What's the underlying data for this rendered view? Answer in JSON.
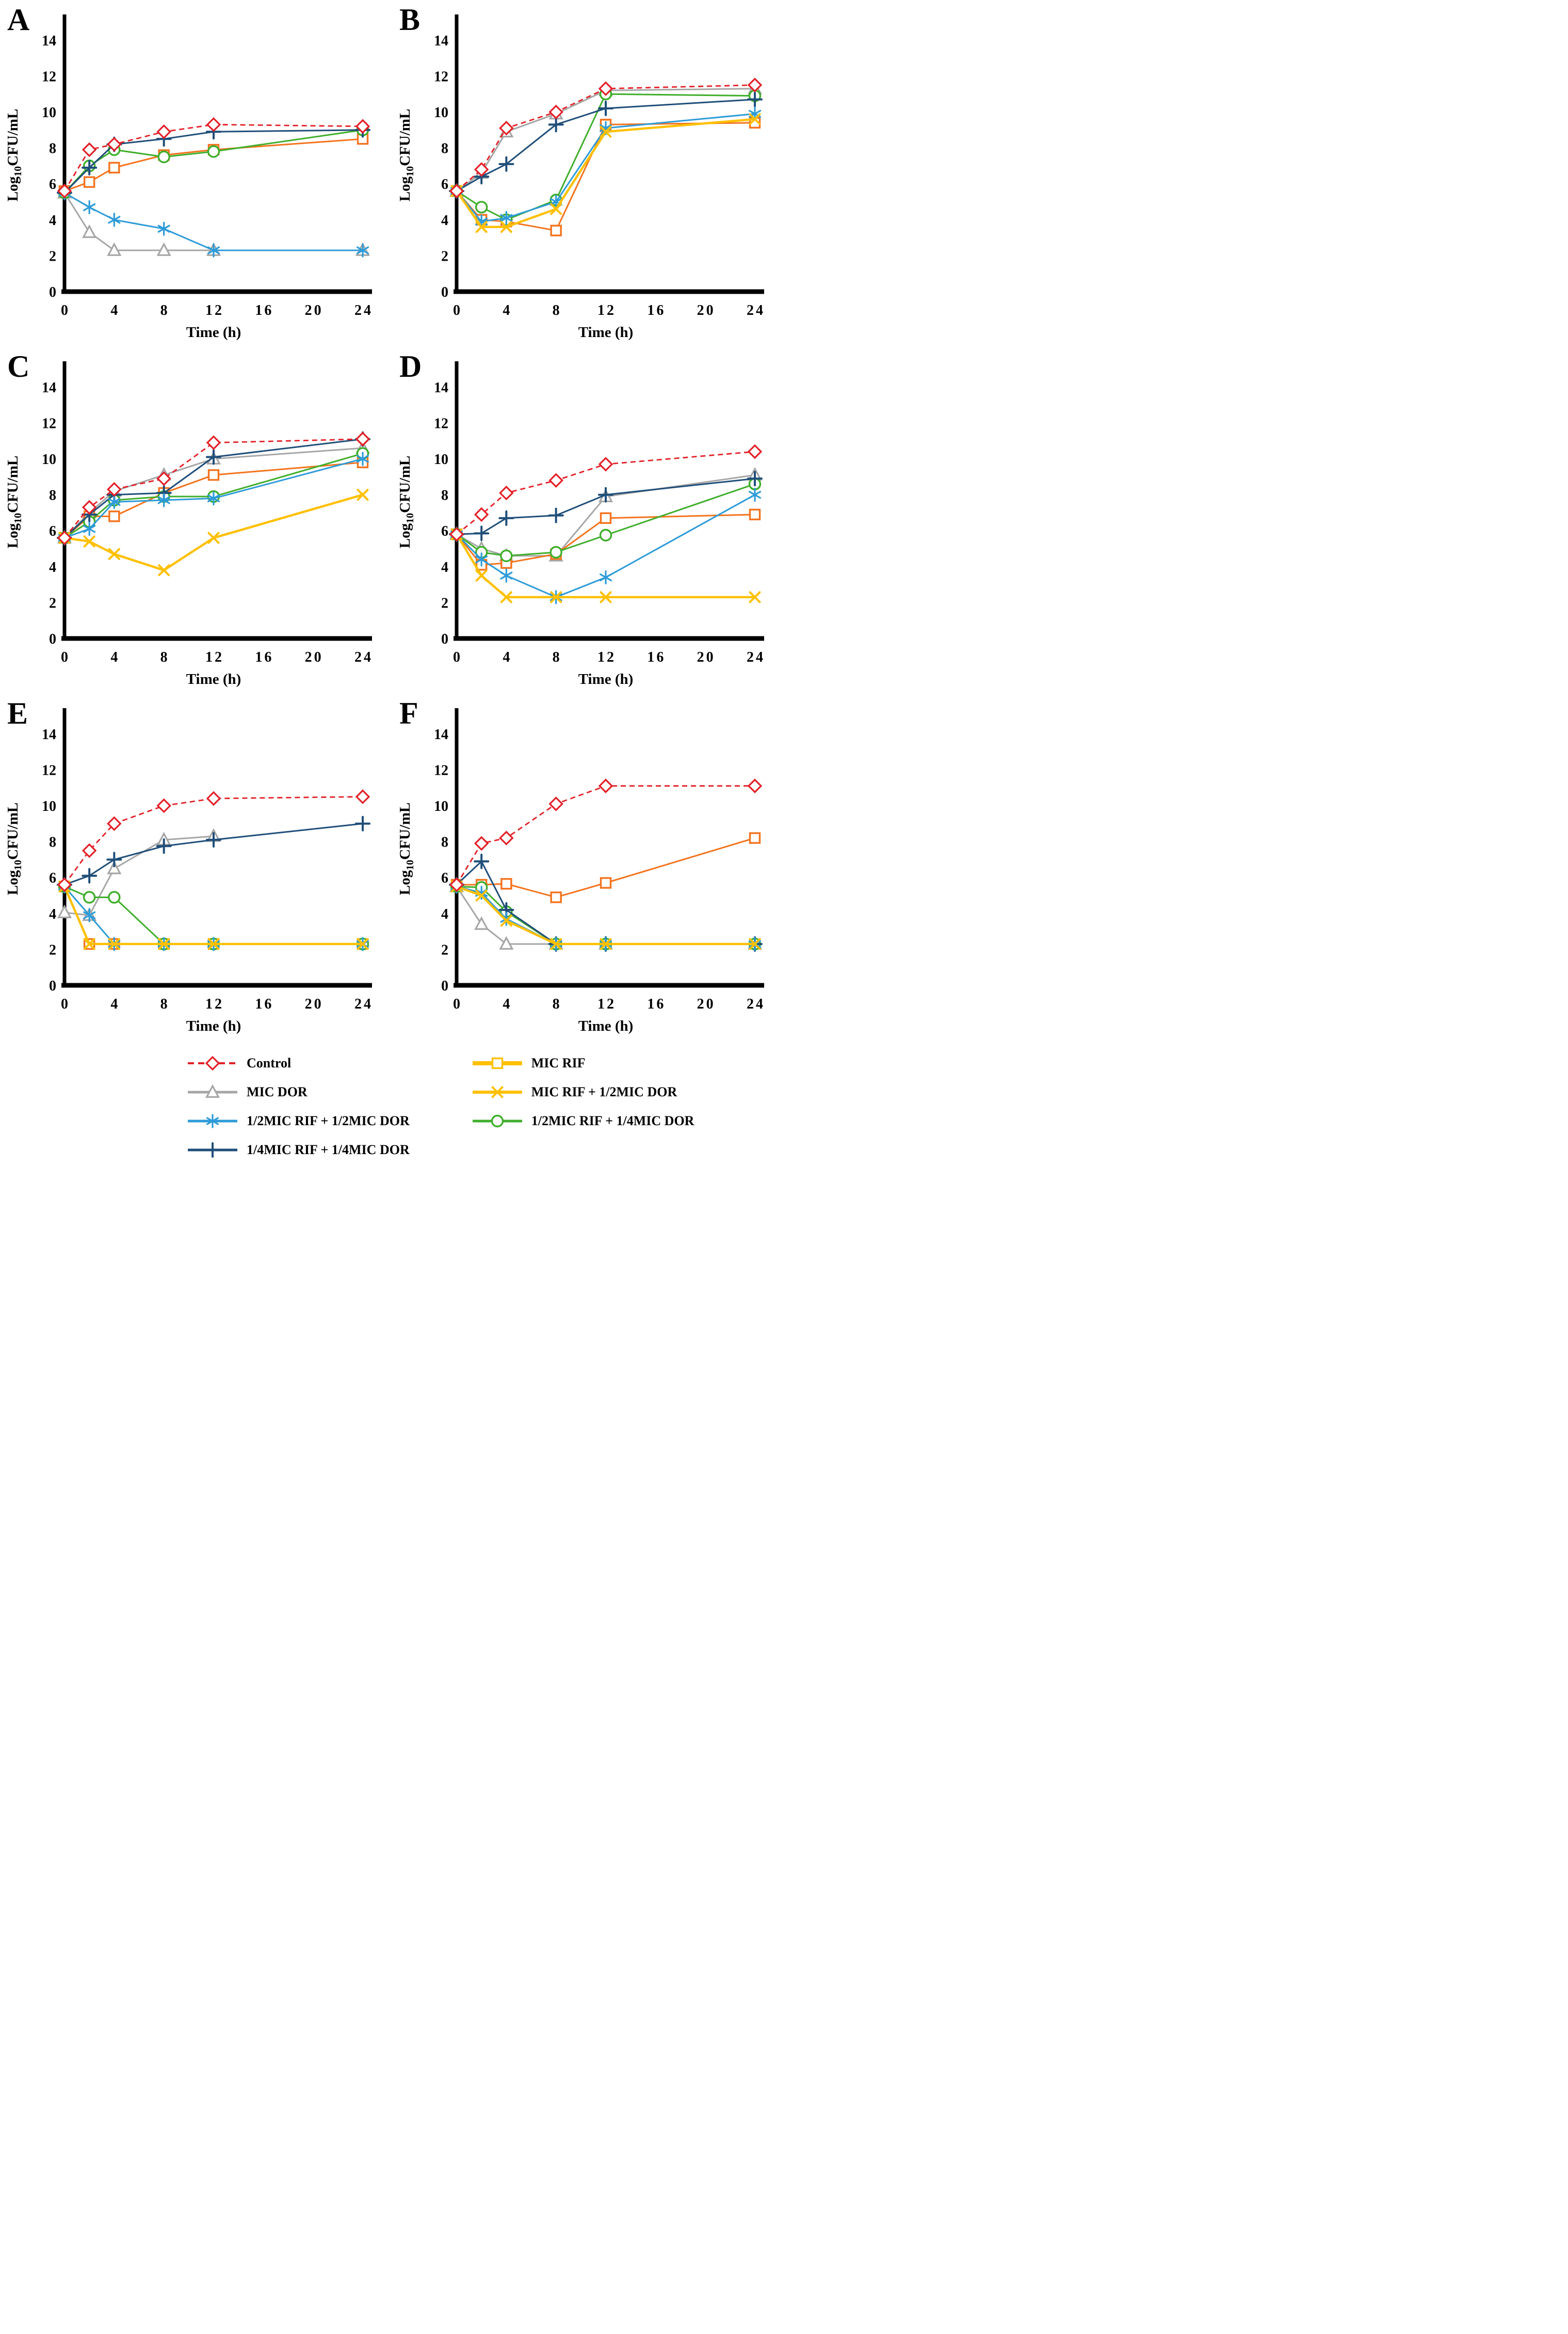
{
  "figure_title": "",
  "chart_data": {
    "type": "line",
    "xlabel": "Time (h)",
    "ylabel": "Log10CFU/mL",
    "ylabel_parts": [
      "Log",
      "10",
      "CFU/mL"
    ],
    "x": [
      0,
      2,
      4,
      8,
      12,
      24
    ],
    "x_ticks": [
      0,
      4,
      8,
      12,
      16,
      20,
      24
    ],
    "y_ticks": [
      0,
      2,
      4,
      6,
      8,
      10,
      12,
      14
    ],
    "xlim": [
      0,
      24
    ],
    "ylim": [
      0,
      15.2
    ],
    "grid": false,
    "legend_position": "bottom",
    "axis_color": "#000000",
    "background_color": "#FFFFFF",
    "series_defs": [
      {
        "id": "control",
        "label": "Control",
        "color": "#E32028",
        "marker": "diamond",
        "dash": true,
        "lw": 2.8,
        "legend_lw": 4
      },
      {
        "id": "mic_dor",
        "label": "MIC DOR",
        "color": "#A6A6A6",
        "marker": "triangle",
        "dash": false,
        "lw": 3,
        "legend_lw": 5
      },
      {
        "id": "half_rif_half_dor",
        "label": "1/2MIC RIF + 1/2MIC DOR",
        "color": "#2D9BD8",
        "marker": "asterisk",
        "dash": false,
        "lw": 3,
        "legend_lw": 5
      },
      {
        "id": "quarter_rif_quarter_dor",
        "label": "1/4MIC RIF + 1/4MIC DOR",
        "color": "#1F4E79",
        "marker": "plus",
        "dash": false,
        "lw": 3,
        "legend_lw": 5
      },
      {
        "id": "mic_rif",
        "label": "MIC RIF",
        "color": "#F4731D",
        "marker": "square",
        "dash": false,
        "lw": 3,
        "legend_color": "#FFC000",
        "legend_lw": 8
      },
      {
        "id": "mic_rif_half_dor",
        "label": "MIC RIF + 1/2MIC DOR",
        "color": "#FFC000",
        "marker": "x",
        "dash": false,
        "lw": 4.4,
        "legend_lw": 6
      },
      {
        "id": "half_rif_quarter_dor",
        "label": "1/2MIC RIF + 1/4MIC DOR",
        "color": "#3FAE2B",
        "marker": "circle",
        "dash": false,
        "lw": 3,
        "legend_lw": 5
      }
    ],
    "panels": [
      {
        "label": "A",
        "series": {
          "control": [
            5.6,
            7.9,
            8.2,
            8.9,
            9.3,
            9.2
          ],
          "mic_dor": [
            5.5,
            3.3,
            2.3,
            2.3,
            2.3,
            2.3
          ],
          "mic_rif": [
            5.6,
            6.1,
            6.9,
            7.6,
            7.9,
            8.5
          ],
          "mic_rif_half_dor": [
            null,
            null,
            null,
            null,
            null,
            null
          ],
          "half_rif_half_dor": [
            5.5,
            4.7,
            4.0,
            3.5,
            2.3,
            2.3
          ],
          "half_rif_quarter_dor": [
            5.5,
            7.0,
            7.9,
            7.5,
            7.8,
            9.0
          ],
          "quarter_rif_quarter_dor": [
            5.5,
            6.9,
            8.2,
            8.5,
            8.9,
            9.0
          ]
        }
      },
      {
        "label": "B",
        "series": {
          "control": [
            5.6,
            6.8,
            9.1,
            10.0,
            11.3,
            11.5
          ],
          "mic_dor": [
            5.6,
            6.6,
            8.9,
            9.9,
            11.2,
            11.3
          ],
          "mic_rif": [
            5.6,
            4.0,
            3.9,
            3.4,
            9.3,
            9.4
          ],
          "mic_rif_half_dor": [
            5.6,
            3.6,
            3.6,
            4.6,
            8.9,
            9.6
          ],
          "half_rif_half_dor": [
            5.6,
            3.9,
            4.1,
            5.0,
            9.1,
            9.9
          ],
          "half_rif_quarter_dor": [
            5.6,
            4.7,
            4.0,
            5.1,
            11.0,
            10.9
          ],
          "quarter_rif_quarter_dor": [
            5.6,
            6.4,
            7.1,
            9.3,
            10.2,
            10.7
          ]
        }
      },
      {
        "label": "C",
        "series": {
          "control": [
            5.6,
            7.3,
            8.3,
            8.9,
            10.9,
            11.1
          ],
          "mic_dor": [
            5.6,
            7.0,
            8.2,
            9.1,
            10.0,
            10.6
          ],
          "mic_rif": [
            5.6,
            6.8,
            6.8,
            8.1,
            9.1,
            9.8
          ],
          "mic_rif_half_dor": [
            5.6,
            5.4,
            4.7,
            3.8,
            5.6,
            8.0
          ],
          "half_rif_half_dor": [
            5.6,
            6.1,
            7.6,
            7.7,
            7.8,
            10.0
          ],
          "half_rif_quarter_dor": [
            5.6,
            6.5,
            7.7,
            7.9,
            7.9,
            10.3
          ],
          "quarter_rif_quarter_dor": [
            5.6,
            6.9,
            8.0,
            8.1,
            10.1,
            11.1
          ]
        }
      },
      {
        "label": "D",
        "series": {
          "control": [
            5.8,
            6.9,
            8.1,
            8.8,
            9.7,
            10.4
          ],
          "mic_dor": [
            5.8,
            5.0,
            4.6,
            4.6,
            7.9,
            9.1
          ],
          "mic_rif": [
            5.8,
            4.1,
            4.2,
            4.7,
            6.7,
            6.9
          ],
          "mic_rif_half_dor": [
            5.8,
            3.5,
            2.3,
            2.3,
            2.3,
            2.3
          ],
          "half_rif_half_dor": [
            5.8,
            4.4,
            3.5,
            2.3,
            3.4,
            8.0
          ],
          "half_rif_quarter_dor": [
            5.8,
            4.8,
            4.6,
            4.8,
            5.75,
            8.6
          ],
          "quarter_rif_quarter_dor": [
            5.8,
            5.85,
            6.7,
            6.85,
            8.0,
            8.9
          ]
        }
      },
      {
        "label": "E",
        "series": {
          "control": [
            5.6,
            7.5,
            9.0,
            10.0,
            10.4,
            10.5
          ],
          "mic_dor": [
            4.05,
            3.9,
            6.5,
            8.1,
            8.3,
            null
          ],
          "mic_rif": [
            5.5,
            2.3,
            2.3,
            2.3,
            2.3,
            2.3
          ],
          "mic_rif_half_dor": [
            5.5,
            2.3,
            2.3,
            2.3,
            2.3,
            2.3
          ],
          "half_rif_half_dor": [
            5.5,
            3.9,
            2.3,
            2.3,
            2.3,
            2.3
          ],
          "half_rif_quarter_dor": [
            5.5,
            4.9,
            4.9,
            2.3,
            2.3,
            2.3
          ],
          "quarter_rif_quarter_dor": [
            5.6,
            6.1,
            7.0,
            7.75,
            8.1,
            9.0
          ]
        }
      },
      {
        "label": "F",
        "series": {
          "control": [
            5.6,
            7.9,
            8.2,
            10.1,
            11.1,
            11.1
          ],
          "mic_dor": [
            5.5,
            3.4,
            2.3,
            2.3,
            2.3,
            2.3
          ],
          "mic_rif": [
            5.6,
            5.6,
            5.65,
            4.9,
            5.7,
            8.2
          ],
          "mic_rif_half_dor": [
            5.5,
            5.0,
            3.6,
            2.3,
            2.3,
            2.3
          ],
          "half_rif_half_dor": [
            5.5,
            5.15,
            3.7,
            2.3,
            2.3,
            2.3
          ],
          "half_rif_quarter_dor": [
            5.5,
            5.45,
            4.1,
            2.3,
            2.3,
            2.3
          ],
          "quarter_rif_quarter_dor": [
            5.6,
            6.9,
            4.2,
            2.3,
            2.3,
            2.3
          ]
        }
      }
    ],
    "legend_columns": {
      "left": [
        "control",
        "mic_dor",
        "half_rif_half_dor",
        "quarter_rif_quarter_dor"
      ],
      "right": [
        "mic_rif",
        "mic_rif_half_dor",
        "half_rif_quarter_dor"
      ]
    }
  }
}
